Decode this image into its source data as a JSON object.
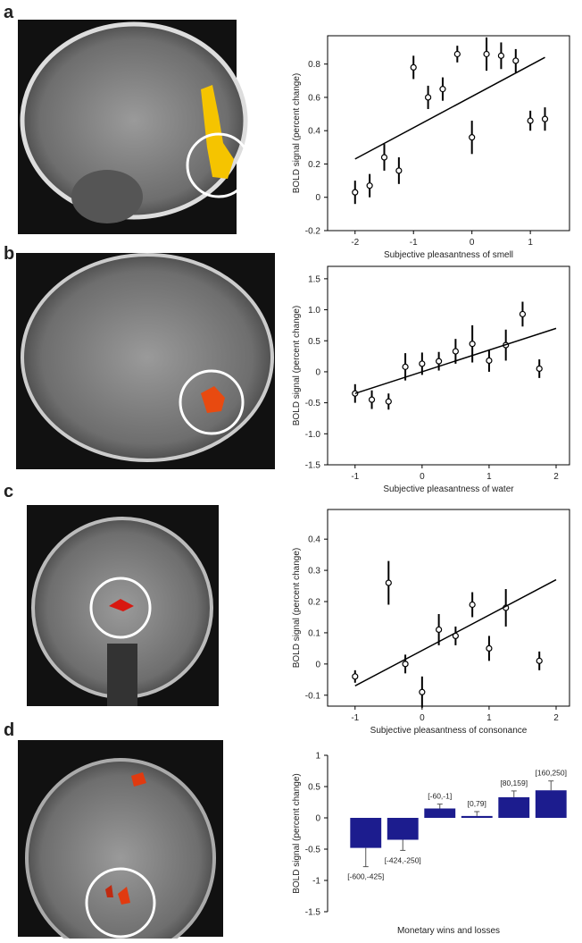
{
  "chart_data": [
    {
      "panel": "a",
      "type": "scatter",
      "x": [
        -2,
        -1.75,
        -1.5,
        -1.25,
        -1,
        -0.75,
        -0.5,
        -0.25,
        0,
        0.25,
        0.5,
        0.75,
        1,
        1.25
      ],
      "y": [
        0.03,
        0.07,
        0.24,
        0.16,
        0.78,
        0.6,
        0.65,
        0.86,
        0.36,
        0.86,
        0.85,
        0.82,
        0.46,
        0.47
      ],
      "err": [
        0.07,
        0.07,
        0.08,
        0.08,
        0.07,
        0.07,
        0.07,
        0.05,
        0.1,
        0.1,
        0.08,
        0.07,
        0.06,
        0.07
      ],
      "fit": {
        "x": [
          -2,
          1.25
        ],
        "y": [
          0.23,
          0.84
        ]
      },
      "xlim": [
        -2.47,
        1.67
      ],
      "ylim": [
        -0.2,
        0.97
      ],
      "xticks": [
        -2,
        -1,
        0,
        1
      ],
      "yticks": [
        -0.2,
        0,
        0.2,
        0.4,
        0.6,
        0.8
      ],
      "xlabel": "Subjective pleasantness of smell",
      "ylabel": "BOLD signal (percent change)"
    },
    {
      "panel": "b",
      "type": "scatter",
      "x": [
        -1,
        -0.75,
        -0.5,
        -0.25,
        0,
        0.25,
        0.5,
        0.75,
        1,
        1.25,
        1.5,
        1.75
      ],
      "y": [
        -0.35,
        -0.45,
        -0.48,
        0.08,
        0.13,
        0.17,
        0.33,
        0.45,
        0.18,
        0.43,
        0.93,
        0.05
      ],
      "err": [
        0.15,
        0.15,
        0.13,
        0.22,
        0.18,
        0.15,
        0.2,
        0.3,
        0.18,
        0.25,
        0.2,
        0.15
      ],
      "fit": {
        "x": [
          -1,
          2
        ],
        "y": [
          -0.35,
          0.7
        ]
      },
      "xlim": [
        -1.41,
        2.2
      ],
      "ylim": [
        -1.5,
        1.7
      ],
      "xticks": [
        -1,
        0,
        1,
        2
      ],
      "yticks": [
        -1.5,
        {
          "value": -1,
          "label": "-1.0"
        },
        -0.5,
        0,
        0.5,
        {
          "value": 1,
          "label": "1.0"
        },
        1.5
      ],
      "xlabel": "Subjective pleasantness of water",
      "ylabel": "BOLD signal (percent change)"
    },
    {
      "panel": "c",
      "type": "scatter",
      "x": [
        -1,
        -0.5,
        -0.25,
        0,
        0.25,
        0.5,
        0.75,
        1,
        1.25,
        1.75
      ],
      "y": [
        -0.04,
        0.26,
        0,
        -0.09,
        0.11,
        0.09,
        0.19,
        0.05,
        0.18,
        0.01
      ],
      "err": [
        0.02,
        0.07,
        0.03,
        0.05,
        0.05,
        0.03,
        0.04,
        0.04,
        0.06,
        0.03
      ],
      "fit": {
        "x": [
          -1,
          2
        ],
        "y": [
          -0.07,
          0.27
        ]
      },
      "xlim": [
        -1.41,
        2.2
      ],
      "ylim": [
        -0.135,
        0.495
      ],
      "xticks": [
        -1,
        0,
        1,
        2
      ],
      "yticks": [
        -0.1,
        0,
        0.1,
        0.2,
        0.3,
        0.4
      ],
      "xlabel": "Subjective pleasantness of consonance",
      "ylabel": "BOLD signal (percent change)"
    },
    {
      "panel": "d",
      "type": "bar",
      "categories": [
        "[-600,-425]",
        "[-424,-250]",
        "[-60,-1]",
        "[0,79]",
        "[80,159]",
        "[160,250]"
      ],
      "values": [
        -0.48,
        -0.35,
        0.15,
        0.03,
        0.33,
        0.44
      ],
      "err": [
        0.3,
        0.17,
        0.07,
        0.07,
        0.1,
        0.15
      ],
      "color": "#1c1c8e",
      "ylim": [
        -1.5,
        1
      ],
      "yticks": [
        -1.5,
        -1,
        -0.5,
        0,
        0.5,
        1
      ],
      "xlabel": "Monetary wins and losses",
      "ylabel": "BOLD signal (percent change)"
    }
  ]
}
